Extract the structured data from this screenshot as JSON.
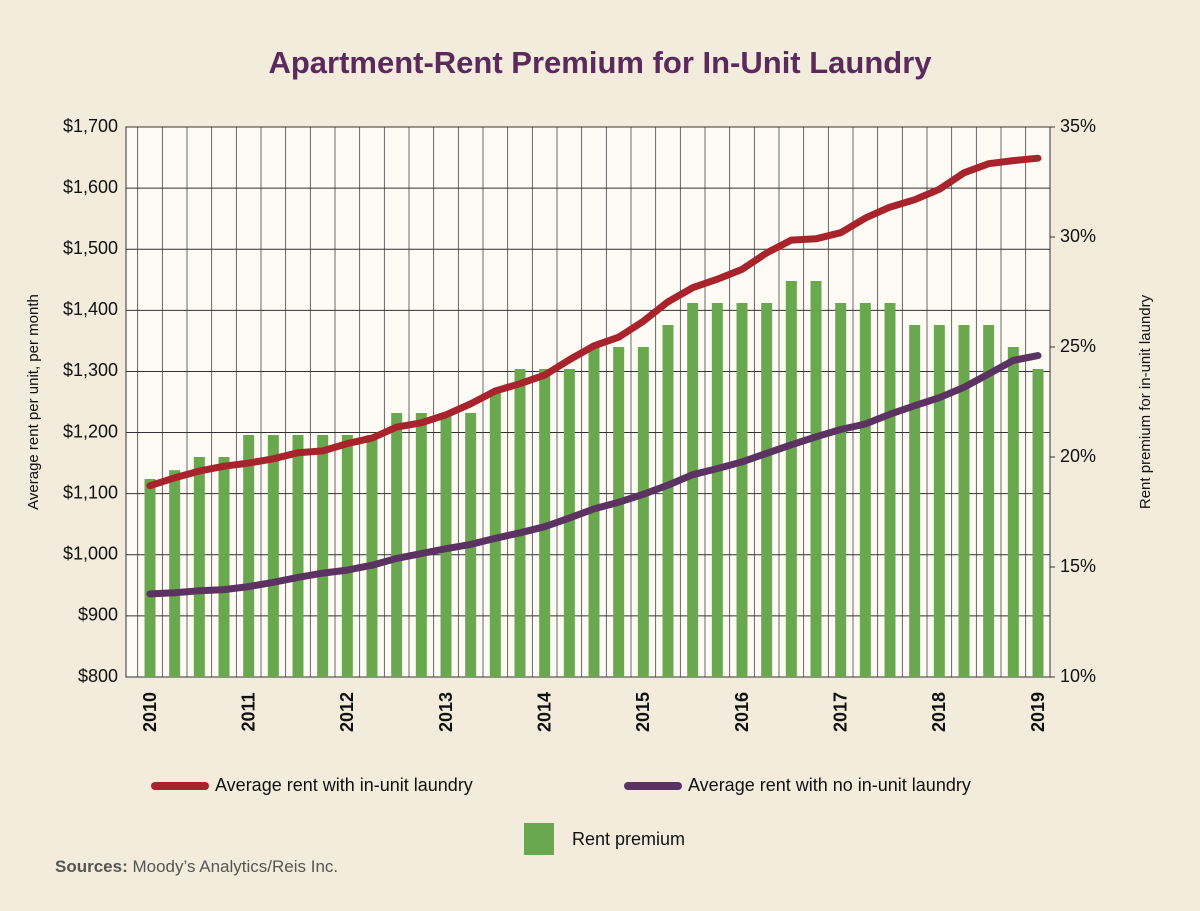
{
  "chart_data": {
    "type": "combo",
    "title": "Apartment-Rent Premium for In-Unit Laundry",
    "ylabel": "Average rent per unit, per month",
    "y2label": "Rent premium for in-unit laundry",
    "source_label": "Sources:",
    "source": "Moody’s Analytics/Reis Inc.",
    "categories": [
      "2010",
      null,
      null,
      null,
      "2011",
      null,
      null,
      null,
      "2012",
      null,
      null,
      null,
      "2013",
      null,
      null,
      null,
      "2014",
      null,
      null,
      null,
      "2015",
      null,
      null,
      null,
      "2016",
      null,
      null,
      null,
      "2017",
      null,
      null,
      null,
      "2018",
      null,
      null,
      null,
      "2019"
    ],
    "ylim": [
      800,
      1700
    ],
    "yticks": [
      {
        "value": 800,
        "label": "$800"
      },
      {
        "value": 900,
        "label": "$900"
      },
      {
        "value": 1000,
        "label": "$1,000"
      },
      {
        "value": 1100,
        "label": "$1,100"
      },
      {
        "value": 1200,
        "label": "$1,200"
      },
      {
        "value": 1300,
        "label": "$1,300"
      },
      {
        "value": 1400,
        "label": "$1,400"
      },
      {
        "value": 1500,
        "label": "$1,500"
      },
      {
        "value": 1600,
        "label": "$1,600"
      },
      {
        "value": 1700,
        "label": "$1,700"
      }
    ],
    "y2lim": [
      10,
      35
    ],
    "y2ticks": [
      {
        "value": 10,
        "label": "10%"
      },
      {
        "value": 15,
        "label": "15%"
      },
      {
        "value": 20,
        "label": "20%"
      },
      {
        "value": 25,
        "label": "25%"
      },
      {
        "value": 30,
        "label": "30%"
      },
      {
        "value": 35,
        "label": "35%"
      }
    ],
    "grid": true,
    "series": [
      {
        "name": "Average rent with in-unit laundry",
        "type": "line",
        "color": "#a8232b",
        "values": [
          1113,
          1126,
          1137,
          1145,
          1150,
          1157,
          1167,
          1170,
          1182,
          1191,
          1209,
          1216,
          1229,
          1247,
          1268,
          1280,
          1294,
          1319,
          1342,
          1356,
          1382,
          1414,
          1437,
          1451,
          1467,
          1494,
          1515,
          1517,
          1527,
          1551,
          1569,
          1581,
          1598,
          1625,
          1640,
          1645,
          1649
        ]
      },
      {
        "name": "Average rent with no in-unit laundry",
        "type": "line",
        "color": "#5b3262",
        "values": [
          936,
          938,
          941,
          943,
          948,
          955,
          963,
          970,
          975,
          983,
          994,
          1002,
          1010,
          1017,
          1027,
          1036,
          1046,
          1060,
          1075,
          1086,
          1099,
          1114,
          1131,
          1141,
          1152,
          1166,
          1180,
          1193,
          1205,
          1214,
          1230,
          1244,
          1257,
          1274,
          1296,
          1318,
          1326
        ]
      },
      {
        "name": "Rent premium",
        "type": "bar",
        "axis": "y2",
        "color": "#6aa84f",
        "values": [
          19,
          19.4,
          20,
          20,
          21,
          21,
          21,
          21,
          21,
          21,
          22,
          22,
          22,
          22,
          23,
          24,
          24,
          24,
          25,
          25,
          25,
          26,
          27,
          27,
          27,
          27,
          28,
          28,
          27,
          27,
          27,
          26,
          26,
          26,
          26,
          25,
          24
        ]
      }
    ]
  }
}
